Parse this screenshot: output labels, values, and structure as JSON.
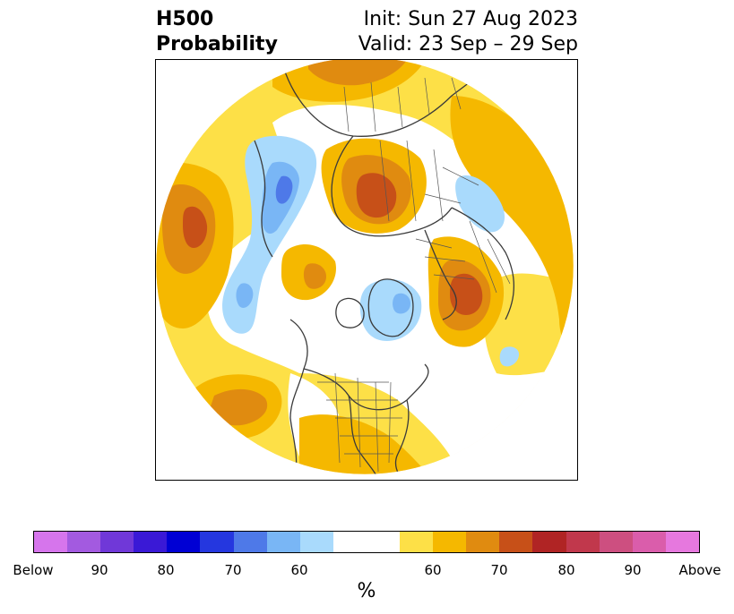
{
  "title": {
    "left_line1": "H500",
    "left_line2": "Probability",
    "right_line1": "Init: Sun 27 Aug 2023",
    "right_line2": "Valid: 23 Sep – 29 Sep"
  },
  "map": {
    "projection": "north polar stereographic",
    "colors": {
      "above_60": "#fde047",
      "above_65": "#f5b800",
      "above_70": "#e08b10",
      "above_75": "#c75018",
      "below_60": "#a9dafc",
      "below_65": "#79b6f5",
      "below_70": "#4e79e8",
      "coast": "#3a3a3a",
      "border": "#555555"
    }
  },
  "colorbar": {
    "segments": [
      "#d675ec",
      "#a35ae0",
      "#7038d8",
      "#3a19d6",
      "#0000d4",
      "#2537df",
      "#4e79e8",
      "#79b6f5",
      "#a9dafc",
      "#ffffff",
      "#ffffff",
      "#fde047",
      "#f5b800",
      "#e08b10",
      "#c75018",
      "#b02424",
      "#c1384c",
      "#cd4f80",
      "#da5dab",
      "#e678de"
    ],
    "ticks": [
      "Below",
      "90",
      "80",
      "70",
      "60",
      "60",
      "70",
      "80",
      "90",
      "Above"
    ],
    "unit_label": "%"
  }
}
